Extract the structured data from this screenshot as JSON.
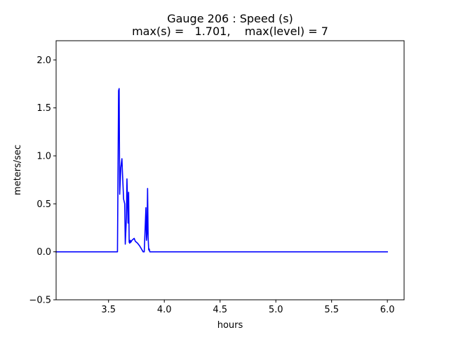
{
  "chart_data": {
    "type": "line",
    "title": "Gauge 206 : Speed (s)",
    "subtitle": "max(s) =   1.701,    max(level) = 7",
    "xlabel": "hours",
    "ylabel": "meters/sec",
    "xlim": [
      3.03,
      6.15
    ],
    "ylim": [
      -0.5,
      2.2
    ],
    "xticks": [
      3.5,
      4.0,
      4.5,
      5.0,
      5.5,
      6.0
    ],
    "xtick_labels": [
      "3.5",
      "4.0",
      "4.5",
      "5.0",
      "5.5",
      "6.0"
    ],
    "yticks": [
      -0.5,
      0.0,
      0.5,
      1.0,
      1.5,
      2.0
    ],
    "ytick_labels": [
      "−0.5",
      "0.0",
      "0.5",
      "1.0",
      "1.5",
      "2.0"
    ],
    "grid": false,
    "series": [
      {
        "color": "#0000ff",
        "x": [
          3.03,
          3.5,
          3.58,
          3.59,
          3.595,
          3.6,
          3.61,
          3.62,
          3.625,
          3.635,
          3.645,
          3.65,
          3.66,
          3.665,
          3.675,
          3.68,
          3.685,
          3.69,
          3.695,
          3.7,
          3.71,
          3.72,
          3.73,
          3.74,
          3.75,
          3.76,
          3.78,
          3.8,
          3.81,
          3.815,
          3.82,
          3.83,
          3.835,
          3.84,
          3.845,
          3.85,
          3.855,
          3.86,
          3.865,
          3.87,
          3.875,
          3.9,
          4.5,
          5.0,
          5.5,
          6.0
        ],
        "y": [
          0.0,
          0.0,
          0.0,
          1.68,
          1.701,
          0.6,
          0.88,
          0.97,
          0.82,
          0.55,
          0.5,
          0.08,
          0.35,
          0.76,
          0.3,
          0.62,
          0.1,
          0.09,
          0.12,
          0.1,
          0.12,
          0.13,
          0.14,
          0.11,
          0.1,
          0.09,
          0.06,
          0.02,
          0.0,
          0.0,
          0.0,
          0.3,
          0.46,
          0.12,
          0.2,
          0.66,
          0.15,
          0.02,
          0.03,
          0.0,
          0.0,
          0.0,
          0.0,
          0.0,
          0.0,
          0.0
        ]
      }
    ]
  }
}
